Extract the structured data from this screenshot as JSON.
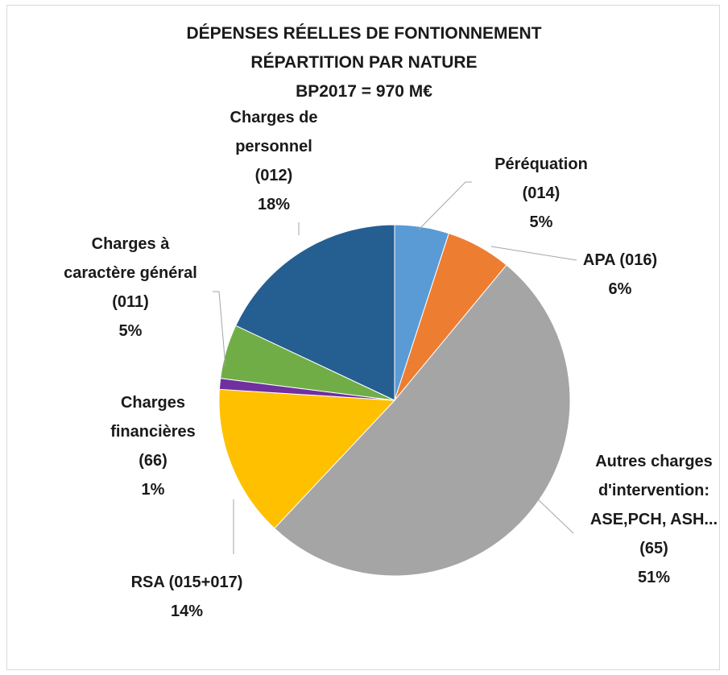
{
  "chart_data": {
    "type": "pie",
    "title": [
      "DÉPENSES RÉELLES DE FONTIONNEMENT",
      "RÉPARTITION PAR NATURE",
      "BP2017 = 970 M€"
    ],
    "categories": [
      "Péréquation (014)",
      "APA (016)",
      "Autres charges d'intervention: ASE,PCH, ASH...(65)",
      "RSA (015+017)",
      "Charges financières (66)",
      "Charges à caractère général (011)",
      "Charges de personnel (012)"
    ],
    "values": [
      5,
      6,
      51,
      14,
      1,
      5,
      18
    ],
    "value_labels": [
      "5%",
      "6%",
      "51%",
      "14%",
      "1%",
      "5%",
      "18%"
    ],
    "colors": [
      "#5b9bd5",
      "#ed7d31",
      "#a5a5a5",
      "#ffc000",
      "#7030a0",
      "#70ad47",
      "#255e91"
    ]
  }
}
